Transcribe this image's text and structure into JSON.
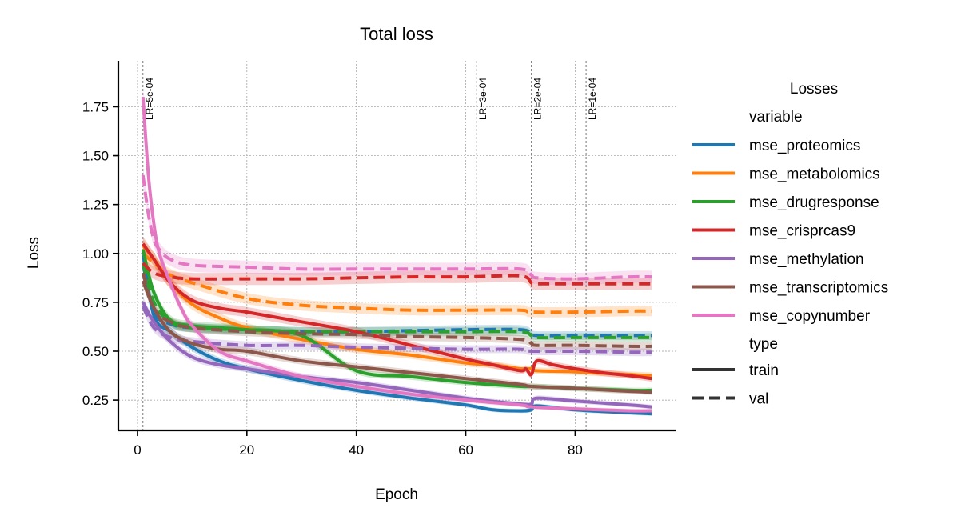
{
  "chart_data": {
    "type": "line",
    "title": "Total loss",
    "xlabel": "Epoch",
    "ylabel": "Loss",
    "xlim": [
      -3.5,
      98.5
    ],
    "ylim": [
      0.095,
      1.985
    ],
    "xticks": [
      0,
      20,
      40,
      60,
      80
    ],
    "yticks": [
      0.25,
      0.5,
      0.75,
      1.0,
      1.25,
      1.5,
      1.75
    ],
    "ytick_labels": [
      "0.25",
      "0.50",
      "0.75",
      "1.00",
      "1.25",
      "1.50",
      "1.75"
    ],
    "grid": true,
    "lr_markers": [
      {
        "x": 1,
        "label": "LR=5e-04"
      },
      {
        "x": 62,
        "label": "LR=3e-04"
      },
      {
        "x": 72,
        "label": "LR=2e-04"
      },
      {
        "x": 82,
        "label": "LR=1e-04"
      }
    ],
    "legend": {
      "title": "Losses",
      "placement": "outside-right",
      "variable_header": "variable",
      "type_header": "type",
      "types": [
        {
          "name": "train",
          "style": "solid"
        },
        {
          "name": "val",
          "style": "dashed"
        }
      ]
    },
    "series": [
      {
        "name": "mse_proteomics",
        "color": "#1f77b4",
        "train": [
          [
            1,
            1.0
          ],
          [
            3,
            0.68
          ],
          [
            6,
            0.6
          ],
          [
            10,
            0.52
          ],
          [
            15,
            0.45
          ],
          [
            20,
            0.41
          ],
          [
            30,
            0.35
          ],
          [
            40,
            0.3
          ],
          [
            50,
            0.26
          ],
          [
            60,
            0.225
          ],
          [
            65,
            0.2
          ],
          [
            70,
            0.195
          ],
          [
            72,
            0.2
          ],
          [
            73,
            0.22
          ],
          [
            80,
            0.2
          ],
          [
            90,
            0.185
          ],
          [
            94,
            0.18
          ]
        ],
        "val": [
          [
            1,
            0.95
          ],
          [
            3,
            0.7
          ],
          [
            6,
            0.64
          ],
          [
            10,
            0.62
          ],
          [
            20,
            0.61
          ],
          [
            30,
            0.6
          ],
          [
            40,
            0.6
          ],
          [
            50,
            0.605
          ],
          [
            60,
            0.61
          ],
          [
            70,
            0.61
          ],
          [
            72,
            0.59
          ],
          [
            73,
            0.58
          ],
          [
            80,
            0.58
          ],
          [
            90,
            0.58
          ],
          [
            94,
            0.58
          ]
        ]
      },
      {
        "name": "mse_metabolomics",
        "color": "#ff7f0e",
        "train": [
          [
            1,
            1.04
          ],
          [
            3,
            0.97
          ],
          [
            6,
            0.85
          ],
          [
            10,
            0.74
          ],
          [
            15,
            0.67
          ],
          [
            20,
            0.62
          ],
          [
            30,
            0.56
          ],
          [
            40,
            0.51
          ],
          [
            50,
            0.48
          ],
          [
            60,
            0.44
          ],
          [
            65,
            0.43
          ],
          [
            70,
            0.41
          ],
          [
            72,
            0.41
          ],
          [
            73,
            0.4
          ],
          [
            80,
            0.395
          ],
          [
            90,
            0.38
          ],
          [
            94,
            0.375
          ]
        ],
        "val": [
          [
            1,
            1.0
          ],
          [
            3,
            0.95
          ],
          [
            6,
            0.89
          ],
          [
            10,
            0.85
          ],
          [
            20,
            0.77
          ],
          [
            30,
            0.735
          ],
          [
            40,
            0.72
          ],
          [
            50,
            0.71
          ],
          [
            60,
            0.71
          ],
          [
            70,
            0.71
          ],
          [
            72,
            0.7
          ],
          [
            80,
            0.7
          ],
          [
            90,
            0.705
          ],
          [
            94,
            0.705
          ]
        ]
      },
      {
        "name": "mse_drugresponse",
        "color": "#2ca02c",
        "train": [
          [
            1,
            1.02
          ],
          [
            3,
            0.8
          ],
          [
            6,
            0.66
          ],
          [
            10,
            0.63
          ],
          [
            15,
            0.62
          ],
          [
            20,
            0.61
          ],
          [
            30,
            0.58
          ],
          [
            40,
            0.4
          ],
          [
            50,
            0.37
          ],
          [
            60,
            0.34
          ],
          [
            70,
            0.32
          ],
          [
            72,
            0.32
          ],
          [
            80,
            0.31
          ],
          [
            90,
            0.3
          ],
          [
            94,
            0.3
          ]
        ],
        "val": [
          [
            1,
            0.95
          ],
          [
            3,
            0.75
          ],
          [
            6,
            0.65
          ],
          [
            10,
            0.62
          ],
          [
            20,
            0.61
          ],
          [
            30,
            0.6
          ],
          [
            40,
            0.6
          ],
          [
            50,
            0.6
          ],
          [
            60,
            0.6
          ],
          [
            70,
            0.6
          ],
          [
            72,
            0.58
          ],
          [
            73,
            0.57
          ],
          [
            80,
            0.57
          ],
          [
            90,
            0.57
          ],
          [
            94,
            0.57
          ]
        ]
      },
      {
        "name": "mse_crisprcas9",
        "color": "#d62728",
        "train": [
          [
            1,
            1.05
          ],
          [
            3,
            0.97
          ],
          [
            6,
            0.85
          ],
          [
            10,
            0.76
          ],
          [
            15,
            0.72
          ],
          [
            20,
            0.7
          ],
          [
            30,
            0.65
          ],
          [
            40,
            0.6
          ],
          [
            50,
            0.53
          ],
          [
            60,
            0.46
          ],
          [
            65,
            0.43
          ],
          [
            70,
            0.4
          ],
          [
            71,
            0.41
          ],
          [
            72,
            0.38
          ],
          [
            73,
            0.45
          ],
          [
            76,
            0.43
          ],
          [
            80,
            0.41
          ],
          [
            85,
            0.39
          ],
          [
            90,
            0.375
          ],
          [
            94,
            0.36
          ]
        ],
        "val": [
          [
            1,
            0.95
          ],
          [
            3,
            0.9
          ],
          [
            6,
            0.88
          ],
          [
            10,
            0.87
          ],
          [
            20,
            0.87
          ],
          [
            30,
            0.87
          ],
          [
            40,
            0.875
          ],
          [
            50,
            0.88
          ],
          [
            60,
            0.88
          ],
          [
            70,
            0.885
          ],
          [
            72,
            0.85
          ],
          [
            73,
            0.845
          ],
          [
            80,
            0.845
          ],
          [
            90,
            0.845
          ],
          [
            94,
            0.845
          ]
        ]
      },
      {
        "name": "mse_methylation",
        "color": "#9467bd",
        "train": [
          [
            1,
            0.75
          ],
          [
            3,
            0.65
          ],
          [
            6,
            0.55
          ],
          [
            10,
            0.47
          ],
          [
            15,
            0.43
          ],
          [
            20,
            0.41
          ],
          [
            30,
            0.37
          ],
          [
            40,
            0.34
          ],
          [
            50,
            0.3
          ],
          [
            60,
            0.26
          ],
          [
            70,
            0.23
          ],
          [
            72,
            0.23
          ],
          [
            73,
            0.26
          ],
          [
            80,
            0.245
          ],
          [
            90,
            0.225
          ],
          [
            94,
            0.215
          ]
        ],
        "val": [
          [
            1,
            0.73
          ],
          [
            3,
            0.62
          ],
          [
            6,
            0.57
          ],
          [
            10,
            0.55
          ],
          [
            20,
            0.53
          ],
          [
            30,
            0.53
          ],
          [
            40,
            0.52
          ],
          [
            50,
            0.515
          ],
          [
            60,
            0.51
          ],
          [
            70,
            0.51
          ],
          [
            72,
            0.5
          ],
          [
            80,
            0.5
          ],
          [
            90,
            0.495
          ],
          [
            94,
            0.495
          ]
        ]
      },
      {
        "name": "mse_transcriptomics",
        "color": "#8c564b",
        "train": [
          [
            1,
            0.86
          ],
          [
            3,
            0.72
          ],
          [
            6,
            0.6
          ],
          [
            10,
            0.54
          ],
          [
            15,
            0.51
          ],
          [
            20,
            0.5
          ],
          [
            30,
            0.45
          ],
          [
            40,
            0.42
          ],
          [
            50,
            0.39
          ],
          [
            60,
            0.36
          ],
          [
            70,
            0.33
          ],
          [
            72,
            0.32
          ],
          [
            80,
            0.31
          ],
          [
            90,
            0.295
          ],
          [
            94,
            0.29
          ]
        ],
        "val": [
          [
            1,
            0.9
          ],
          [
            3,
            0.72
          ],
          [
            6,
            0.65
          ],
          [
            10,
            0.62
          ],
          [
            20,
            0.6
          ],
          [
            30,
            0.59
          ],
          [
            40,
            0.585
          ],
          [
            50,
            0.575
          ],
          [
            60,
            0.57
          ],
          [
            70,
            0.56
          ],
          [
            72,
            0.54
          ],
          [
            73,
            0.53
          ],
          [
            80,
            0.53
          ],
          [
            90,
            0.525
          ],
          [
            94,
            0.525
          ]
        ]
      },
      {
        "name": "mse_copynumber",
        "color": "#e377c2",
        "train": [
          [
            1,
            1.8
          ],
          [
            2,
            1.4
          ],
          [
            3,
            1.15
          ],
          [
            4,
            1.0
          ],
          [
            6,
            0.85
          ],
          [
            8,
            0.72
          ],
          [
            10,
            0.63
          ],
          [
            15,
            0.5
          ],
          [
            20,
            0.45
          ],
          [
            30,
            0.37
          ],
          [
            40,
            0.32
          ],
          [
            50,
            0.28
          ],
          [
            60,
            0.25
          ],
          [
            70,
            0.225
          ],
          [
            72,
            0.215
          ],
          [
            80,
            0.205
          ],
          [
            90,
            0.195
          ],
          [
            94,
            0.195
          ]
        ],
        "val": [
          [
            1,
            1.4
          ],
          [
            2,
            1.2
          ],
          [
            3,
            1.07
          ],
          [
            4,
            1.02
          ],
          [
            6,
            0.97
          ],
          [
            10,
            0.94
          ],
          [
            20,
            0.93
          ],
          [
            30,
            0.92
          ],
          [
            40,
            0.92
          ],
          [
            50,
            0.92
          ],
          [
            60,
            0.92
          ],
          [
            70,
            0.92
          ],
          [
            72,
            0.89
          ],
          [
            73,
            0.875
          ],
          [
            80,
            0.87
          ],
          [
            90,
            0.88
          ],
          [
            94,
            0.88
          ]
        ]
      }
    ]
  }
}
